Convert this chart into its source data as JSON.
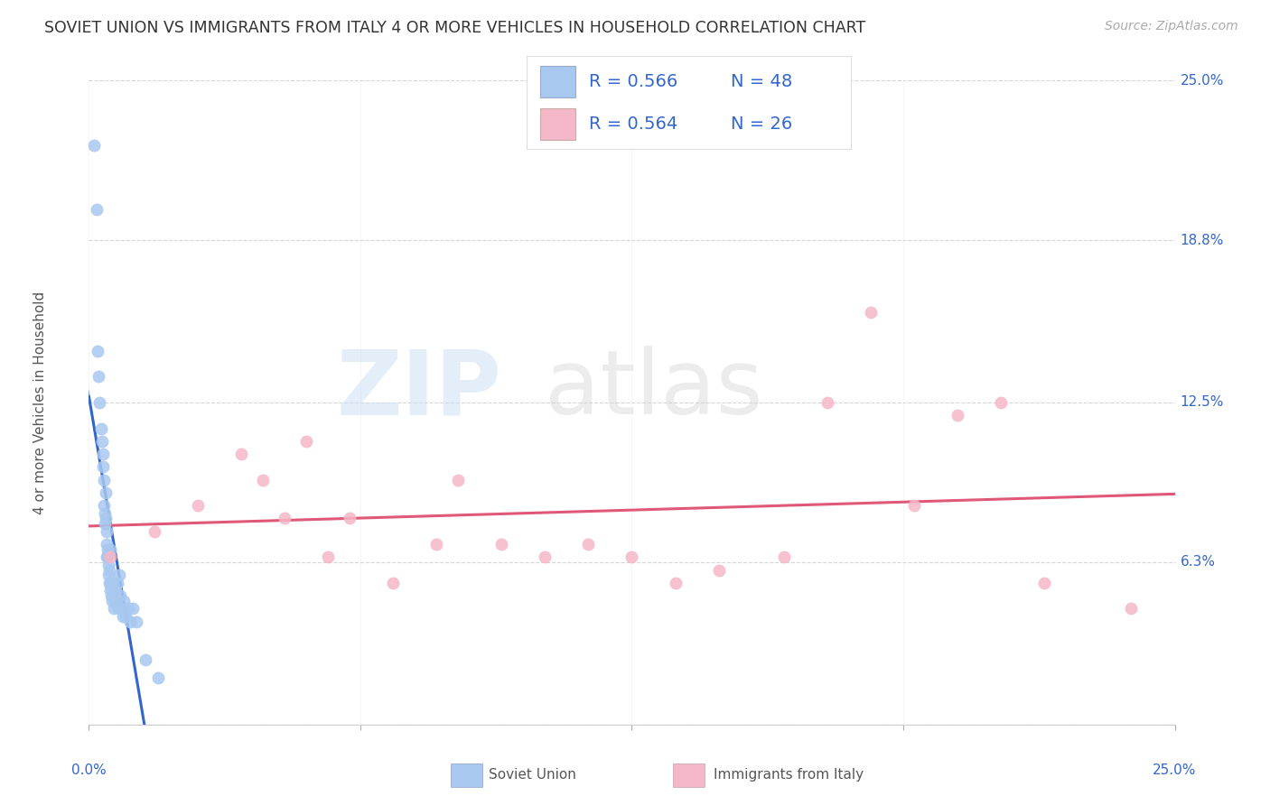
{
  "title": "SOVIET UNION VS IMMIGRANTS FROM ITALY 4 OR MORE VEHICLES IN HOUSEHOLD CORRELATION CHART",
  "source": "Source: ZipAtlas.com",
  "ylabel": "4 or more Vehicles in Household",
  "soviet_R": "0.566",
  "soviet_N": "48",
  "italy_R": "0.564",
  "italy_N": "26",
  "soviet_color": "#a8c8f0",
  "italy_color": "#f5b8c8",
  "soviet_line_color": "#3366cc",
  "italy_line_color": "#e05878",
  "xlim": [
    0.0,
    25.0
  ],
  "ylim": [
    0.0,
    25.0
  ],
  "ytick_vals": [
    6.3,
    12.5,
    18.8,
    25.0
  ],
  "ytick_labels": [
    "6.3%",
    "12.5%",
    "18.8%",
    "25.0%"
  ],
  "xtick_vals": [
    0.0,
    6.25,
    12.5,
    18.75,
    25.0
  ],
  "soviet_x": [
    0.12,
    0.18,
    0.2,
    0.22,
    0.25,
    0.28,
    0.3,
    0.32,
    0.33,
    0.35,
    0.35,
    0.36,
    0.37,
    0.38,
    0.39,
    0.4,
    0.4,
    0.41,
    0.42,
    0.43,
    0.44,
    0.45,
    0.46,
    0.47,
    0.48,
    0.5,
    0.5,
    0.52,
    0.54,
    0.55,
    0.56,
    0.58,
    0.6,
    0.62,
    0.65,
    0.68,
    0.7,
    0.72,
    0.75,
    0.78,
    0.8,
    0.85,
    0.9,
    0.95,
    1.0,
    1.1,
    1.3,
    1.6
  ],
  "soviet_y": [
    22.5,
    20.0,
    14.5,
    13.5,
    12.5,
    11.5,
    11.0,
    10.5,
    10.0,
    9.5,
    8.5,
    8.2,
    7.8,
    9.0,
    8.0,
    7.5,
    6.5,
    7.0,
    6.8,
    6.5,
    6.2,
    5.8,
    5.5,
    6.0,
    5.5,
    5.2,
    6.8,
    5.0,
    4.8,
    5.5,
    5.0,
    4.5,
    4.8,
    5.2,
    5.5,
    4.5,
    5.8,
    5.0,
    4.5,
    4.2,
    4.8,
    4.2,
    4.5,
    4.0,
    4.5,
    4.0,
    2.5,
    1.8
  ],
  "italy_x": [
    0.5,
    1.5,
    2.5,
    3.5,
    4.0,
    4.5,
    5.0,
    5.5,
    6.0,
    7.0,
    8.0,
    8.5,
    9.5,
    10.5,
    11.5,
    12.5,
    13.5,
    14.5,
    16.0,
    17.0,
    18.0,
    19.0,
    20.0,
    21.0,
    22.0,
    24.0
  ],
  "italy_y": [
    6.5,
    7.5,
    8.5,
    10.5,
    9.5,
    8.0,
    11.0,
    6.5,
    8.0,
    5.5,
    7.0,
    9.5,
    7.0,
    6.5,
    7.0,
    6.5,
    5.5,
    6.0,
    6.5,
    12.5,
    16.0,
    8.5,
    12.0,
    12.5,
    5.5,
    4.5
  ]
}
